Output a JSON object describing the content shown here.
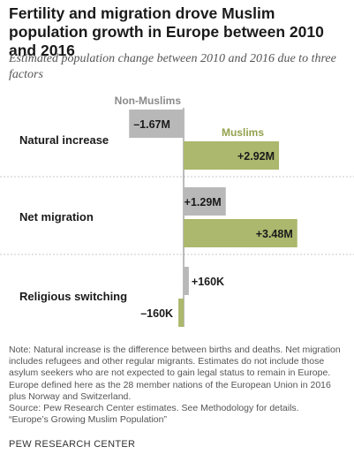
{
  "title": "Fertility and migration drove Muslim population growth in Europe between 2010 and 2016",
  "subtitle": "Estimated population change between 2010 and 2016 due to three factors",
  "notes": [
    "Note: Natural increase is the difference between births and deaths. Net migration includes refugees and other regular migrants. Estimates do not include those asylum seekers who are not expected to gain legal status to remain in Europe. Europe defined here as the 28 member nations of the European Union in 2016 plus Norway and Switzerland.",
    "Source: Pew Research Center estimates. See Methodology for details.",
    "“Europe’s Growing Muslim Population”"
  ],
  "brand": "PEW RESEARCH CENTER",
  "colors": {
    "non_muslims": "#b8b8b8",
    "muslims": "#abb86d",
    "muslims_label": "#93a14c",
    "divider": "#c9c9c9",
    "axis": "#7a7a7a"
  },
  "chart_data": {
    "type": "bar",
    "orientation": "horizontal",
    "units": "millions",
    "categories": [
      "Natural increase",
      "Net migration",
      "Religious switching"
    ],
    "series": [
      {
        "name": "Non-Muslims",
        "values": [
          -1.67,
          1.29,
          0.16
        ],
        "labels": [
          "–1.67M",
          "+1.29M",
          "+160K"
        ]
      },
      {
        "name": "Muslims",
        "values": [
          2.92,
          3.48,
          -0.16
        ],
        "labels": [
          "+2.92M",
          "+3.48M",
          "–160K"
        ]
      }
    ]
  }
}
